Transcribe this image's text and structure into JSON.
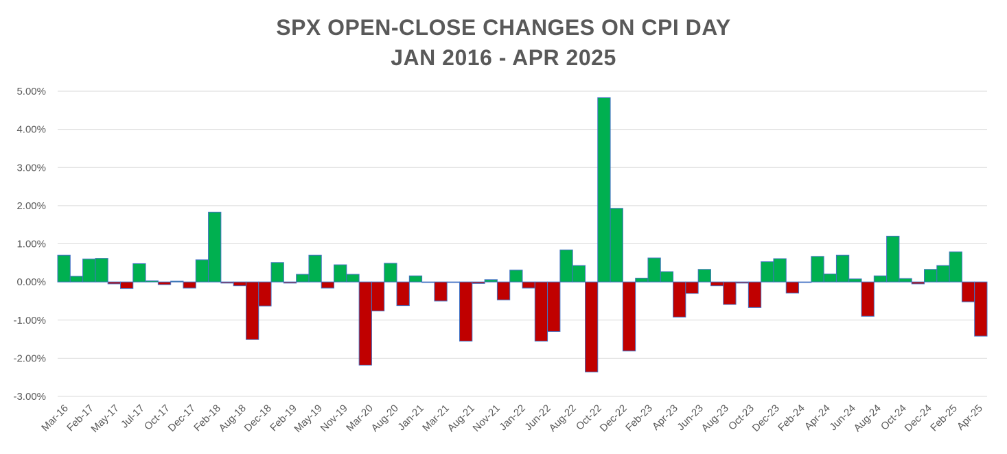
{
  "chart_data": {
    "type": "bar",
    "title": "SPX OPEN-CLOSE CHANGES ON CPI DAY",
    "subtitle": "JAN 2016 - APR 2025",
    "xlabel": "",
    "ylabel": "",
    "ylim": [
      -0.03,
      0.05
    ],
    "yticks": [
      "-3.00%",
      "-2.00%",
      "-1.00%",
      "0.00%",
      "1.00%",
      "2.00%",
      "3.00%",
      "4.00%",
      "5.00%"
    ],
    "grid": true,
    "legend": "none",
    "colors": {
      "positive": "#00B050",
      "negative": "#C00000",
      "bar_edge": "#4472C4",
      "grid": "#D9D9D9",
      "axis_text": "#595959"
    },
    "x_tick_labels": [
      "Mar-16",
      "Feb-17",
      "May-17",
      "Jul-17",
      "Oct-17",
      "Dec-17",
      "Feb-18",
      "Aug-18",
      "Dec-18",
      "Feb-19",
      "May-19",
      "Nov-19",
      "Mar-20",
      "Aug-20",
      "Jan-21",
      "Mar-21",
      "Aug-21",
      "Nov-21",
      "Jan-22",
      "Jun-22",
      "Aug-22",
      "Oct-22",
      "Dec-22",
      "Feb-23",
      "Apr-23",
      "Jun-23",
      "Aug-23",
      "Oct-23",
      "Dec-23",
      "Feb-24",
      "Apr-24",
      "Jun-24",
      "Aug-24",
      "Oct-24",
      "Dec-24",
      "Feb-25",
      "Apr-25"
    ],
    "values": [
      0.007,
      0.0015,
      0.006,
      0.0062,
      -0.0005,
      -0.0017,
      0.0048,
      0.0003,
      -0.0007,
      0.0002,
      -0.0016,
      0.0058,
      0.0183,
      -0.0003,
      -0.001,
      -0.0151,
      -0.0063,
      0.0051,
      -0.0003,
      0.002,
      0.007,
      -0.0016,
      0.0045,
      0.002,
      -0.0218,
      -0.0076,
      0.0049,
      -0.0062,
      0.0016,
      -0.0001,
      -0.005,
      -0.0001,
      -0.0155,
      -0.0004,
      0.0006,
      -0.0047,
      0.0031,
      -0.0016,
      -0.0155,
      -0.013,
      0.0084,
      0.0043,
      -0.0236,
      0.0483,
      0.0193,
      -0.0181,
      0.001,
      0.0063,
      0.0027,
      -0.0092,
      -0.003,
      0.0033,
      -0.001,
      -0.0059,
      -0.0003,
      -0.0067,
      0.0053,
      0.0061,
      -0.0029,
      -0.0001,
      0.0067,
      0.0021,
      0.007,
      0.0008,
      -0.009,
      0.0016,
      0.012,
      0.0009,
      -0.0005,
      0.0033,
      0.0043,
      0.0079,
      -0.0052,
      -0.0142
    ]
  },
  "title": {
    "line1": "SPX OPEN-CLOSE CHANGES ON CPI DAY",
    "line2": "JAN 2016 - APR 2025"
  }
}
